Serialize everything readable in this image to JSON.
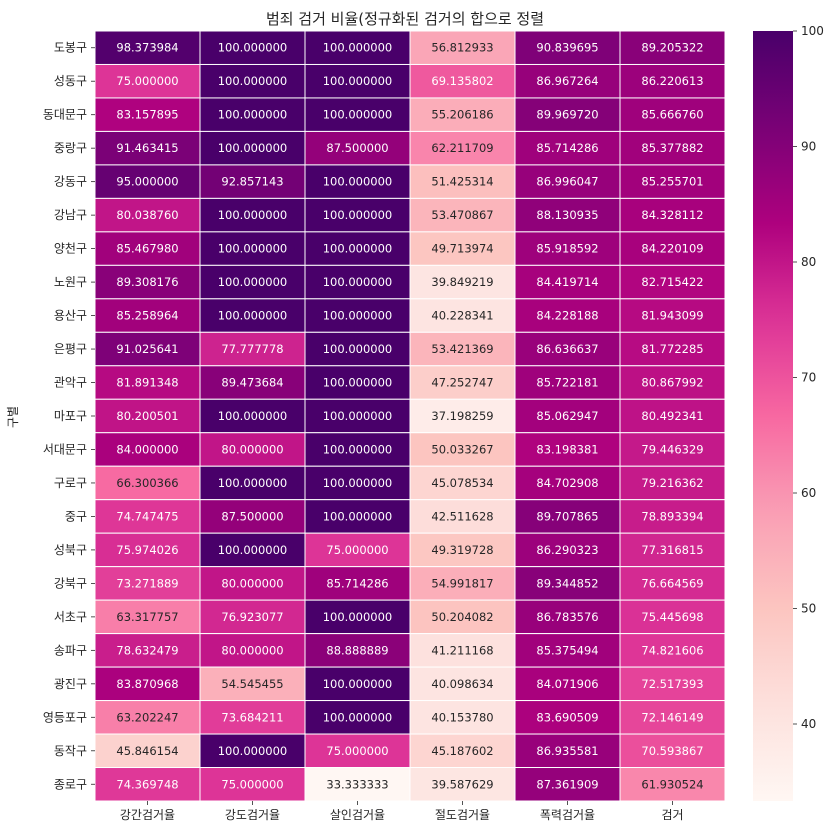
{
  "chart_data": {
    "type": "heatmap",
    "title": "범죄 검거 비율(정규화된 검거의 합으로 정렬",
    "xlabel": "",
    "ylabel": "구별",
    "columns": [
      "강간검거율",
      "강도검거율",
      "살인검거율",
      "절도검거율",
      "폭력검거율",
      "검거"
    ],
    "rows": [
      "도봉구",
      "성동구",
      "동대문구",
      "중랑구",
      "강동구",
      "강남구",
      "양천구",
      "노원구",
      "용산구",
      "은평구",
      "관악구",
      "마포구",
      "서대문구",
      "구로구",
      "중구",
      "성북구",
      "강북구",
      "서초구",
      "송파구",
      "광진구",
      "영등포구",
      "동작구",
      "종로구"
    ],
    "values": [
      [
        98.373984,
        100.0,
        100.0,
        56.812933,
        90.839695,
        89.205322
      ],
      [
        75.0,
        100.0,
        100.0,
        69.135802,
        86.967264,
        86.220613
      ],
      [
        83.157895,
        100.0,
        100.0,
        55.206186,
        89.96972,
        85.66676
      ],
      [
        91.463415,
        100.0,
        87.5,
        62.211709,
        85.714286,
        85.377882
      ],
      [
        95.0,
        92.857143,
        100.0,
        51.425314,
        86.996047,
        85.255701
      ],
      [
        80.03876,
        100.0,
        100.0,
        53.470867,
        88.130935,
        84.328112
      ],
      [
        85.46798,
        100.0,
        100.0,
        49.713974,
        85.918592,
        84.220109
      ],
      [
        89.308176,
        100.0,
        100.0,
        39.849219,
        84.419714,
        82.715422
      ],
      [
        85.258964,
        100.0,
        100.0,
        40.228341,
        84.228188,
        81.943099
      ],
      [
        91.025641,
        77.777778,
        100.0,
        53.421369,
        86.636637,
        81.772285
      ],
      [
        81.891348,
        89.473684,
        100.0,
        47.252747,
        85.722181,
        80.867992
      ],
      [
        80.200501,
        100.0,
        100.0,
        37.198259,
        85.062947,
        80.492341
      ],
      [
        84.0,
        80.0,
        100.0,
        50.033267,
        83.198381,
        79.446329
      ],
      [
        66.300366,
        100.0,
        100.0,
        45.078534,
        84.702908,
        79.216362
      ],
      [
        74.747475,
        87.5,
        100.0,
        42.511628,
        89.707865,
        78.893394
      ],
      [
        75.974026,
        100.0,
        75.0,
        49.319728,
        86.290323,
        77.316815
      ],
      [
        73.271889,
        80.0,
        85.714286,
        54.991817,
        89.344852,
        76.664569
      ],
      [
        63.317757,
        76.923077,
        100.0,
        50.204082,
        86.783576,
        75.445698
      ],
      [
        78.632479,
        80.0,
        88.888889,
        41.211168,
        85.375494,
        74.821606
      ],
      [
        83.870968,
        54.545455,
        100.0,
        40.098634,
        84.071906,
        72.517393
      ],
      [
        63.202247,
        73.684211,
        100.0,
        40.15378,
        83.690509,
        72.146149
      ],
      [
        45.846154,
        100.0,
        75.0,
        45.187602,
        86.935581,
        70.593867
      ],
      [
        74.369748,
        75.0,
        33.333333,
        39.587629,
        87.361909,
        61.930524
      ]
    ],
    "color_range": [
      33.333333,
      100
    ],
    "colormap": "RdPu",
    "colorbar_ticks": [
      40,
      50,
      60,
      70,
      80,
      90,
      100
    ],
    "value_format": "%.6f",
    "grid_lines": "white"
  }
}
